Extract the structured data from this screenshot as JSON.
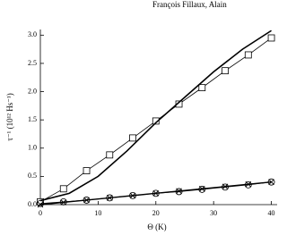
{
  "header": "François Fillaux, Alain",
  "chart_data": {
    "type": "line",
    "x_label": "Θ (K)",
    "y_label": "τ⁻¹ (10¹² Hs⁻¹)",
    "xlim": [
      0,
      41
    ],
    "ylim": [
      0,
      3.1
    ],
    "xticks": [
      0,
      10,
      20,
      30,
      40
    ],
    "yticks": [
      {
        "value": 0,
        "label": "0.0"
      },
      {
        "value": 0.5,
        "label": "0.5"
      },
      {
        "value": 1,
        "label": "1.0"
      },
      {
        "value": 1.5,
        "label": "1.5"
      },
      {
        "value": 2,
        "label": "2.0"
      },
      {
        "value": 2.5,
        "label": "2.5"
      },
      {
        "value": 3,
        "label": "3.0"
      }
    ],
    "series": [
      {
        "color": "#000000",
        "marker": "square",
        "line_width": 0.8,
        "x": [
          0,
          4,
          8,
          12,
          16,
          20,
          24,
          28,
          32,
          36,
          40
        ],
        "values": [
          0.05,
          0.28,
          0.6,
          0.88,
          1.18,
          1.48,
          1.78,
          2.07,
          2.37,
          2.65,
          2.95
        ]
      },
      {
        "color": "#000000",
        "marker": "none",
        "line_width": 1.6,
        "x": [
          0,
          5,
          10,
          15,
          20,
          25,
          30,
          35,
          40
        ],
        "values": [
          0.07,
          0.2,
          0.5,
          0.95,
          1.45,
          1.9,
          2.35,
          2.75,
          3.08
        ]
      },
      {
        "color": "#000000",
        "marker": "circle",
        "line_width": 0.8,
        "x": [
          0,
          4,
          8,
          12,
          16,
          20,
          24,
          28,
          32,
          36,
          40
        ],
        "values": [
          0.02,
          0.05,
          0.08,
          0.12,
          0.16,
          0.2,
          0.23,
          0.27,
          0.31,
          0.35,
          0.4
        ]
      },
      {
        "color": "#000000",
        "marker": "cross",
        "line_width": 1.4,
        "x": [
          0,
          4,
          8,
          12,
          16,
          20,
          24,
          28,
          32,
          36,
          40
        ],
        "values": [
          0,
          0.04,
          0.08,
          0.12,
          0.16,
          0.2,
          0.24,
          0.28,
          0.32,
          0.36,
          0.4
        ]
      }
    ]
  }
}
